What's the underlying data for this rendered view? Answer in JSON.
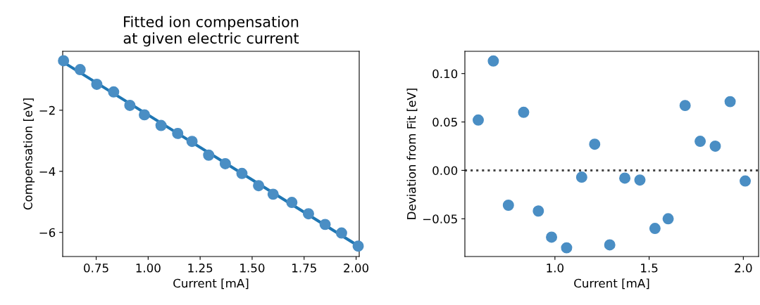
{
  "chart_data": [
    {
      "type": "scatter",
      "title": "Fitted ion compensation\nat given electric current",
      "xlabel": "Current [mA]",
      "ylabel": "Compensation [eV]",
      "x": [
        0.593,
        0.673,
        0.753,
        0.834,
        0.912,
        0.982,
        1.062,
        1.142,
        1.211,
        1.291,
        1.371,
        1.451,
        1.531,
        1.601,
        1.691,
        1.771,
        1.851,
        1.93,
        2.01
      ],
      "series": [
        {
          "marker": "circle",
          "color": "#4a8ec4",
          "values": [
            -0.38,
            -0.67,
            -1.15,
            -1.4,
            -1.84,
            -2.15,
            -2.5,
            -2.76,
            -3.02,
            -3.47,
            -3.75,
            -4.07,
            -4.47,
            -4.75,
            -5.02,
            -5.39,
            -5.74,
            -6.02,
            -6.45
          ]
        },
        {
          "type": "line",
          "marker": "none",
          "color": "#1f77b4",
          "x": [
            0.593,
            2.01
          ],
          "values": [
            -0.43,
            -6.44
          ]
        }
      ],
      "xlim": [
        0.589,
        2.015
      ],
      "ylim": [
        -6.79,
        -0.07
      ],
      "xticks": [
        {
          "value": 0.75,
          "label": "0.75"
        },
        {
          "value": 1.0,
          "label": "1.00"
        },
        {
          "value": 1.25,
          "label": "1.25"
        },
        {
          "value": 1.5,
          "label": "1.50"
        },
        {
          "value": 1.75,
          "label": "1.75"
        },
        {
          "value": 2.0,
          "label": "2.00"
        }
      ],
      "yticks": [
        {
          "value": -2,
          "label": "−2"
        },
        {
          "value": -4,
          "label": "−4"
        },
        {
          "value": -6,
          "label": "−6"
        }
      ],
      "grid": false,
      "legend": false
    },
    {
      "type": "scatter",
      "xlabel": "Current [mA]",
      "ylabel": "Deviation from Fit [eV]",
      "x": [
        0.593,
        0.673,
        0.753,
        0.834,
        0.912,
        0.982,
        1.062,
        1.142,
        1.211,
        1.291,
        1.371,
        1.451,
        1.531,
        1.601,
        1.691,
        1.771,
        1.851,
        1.93,
        2.01
      ],
      "series": [
        {
          "marker": "circle",
          "color": "#4a8ec4",
          "values": [
            0.052,
            0.113,
            -0.036,
            0.06,
            -0.042,
            -0.069,
            -0.08,
            -0.007,
            0.027,
            -0.077,
            -0.008,
            -0.01,
            -0.06,
            -0.05,
            0.067,
            0.03,
            0.025,
            0.071,
            -0.011
          ]
        }
      ],
      "xlim": [
        0.522,
        2.081
      ],
      "ylim": [
        -0.089,
        0.123
      ],
      "xticks": [
        {
          "value": 1.0,
          "label": "1.0"
        },
        {
          "value": 1.5,
          "label": "1.5"
        },
        {
          "value": 2.0,
          "label": "2.0"
        }
      ],
      "yticks": [
        {
          "value": 0.1,
          "label": "0.10"
        },
        {
          "value": 0.05,
          "label": "0.05"
        },
        {
          "value": 0.0,
          "label": "0.00"
        },
        {
          "value": -0.05,
          "label": "−0.05"
        }
      ],
      "ref_lines": [
        {
          "axis": "y",
          "value": 0,
          "color": "#444444",
          "line_style": "dotted"
        }
      ],
      "grid": false,
      "legend": false
    }
  ]
}
